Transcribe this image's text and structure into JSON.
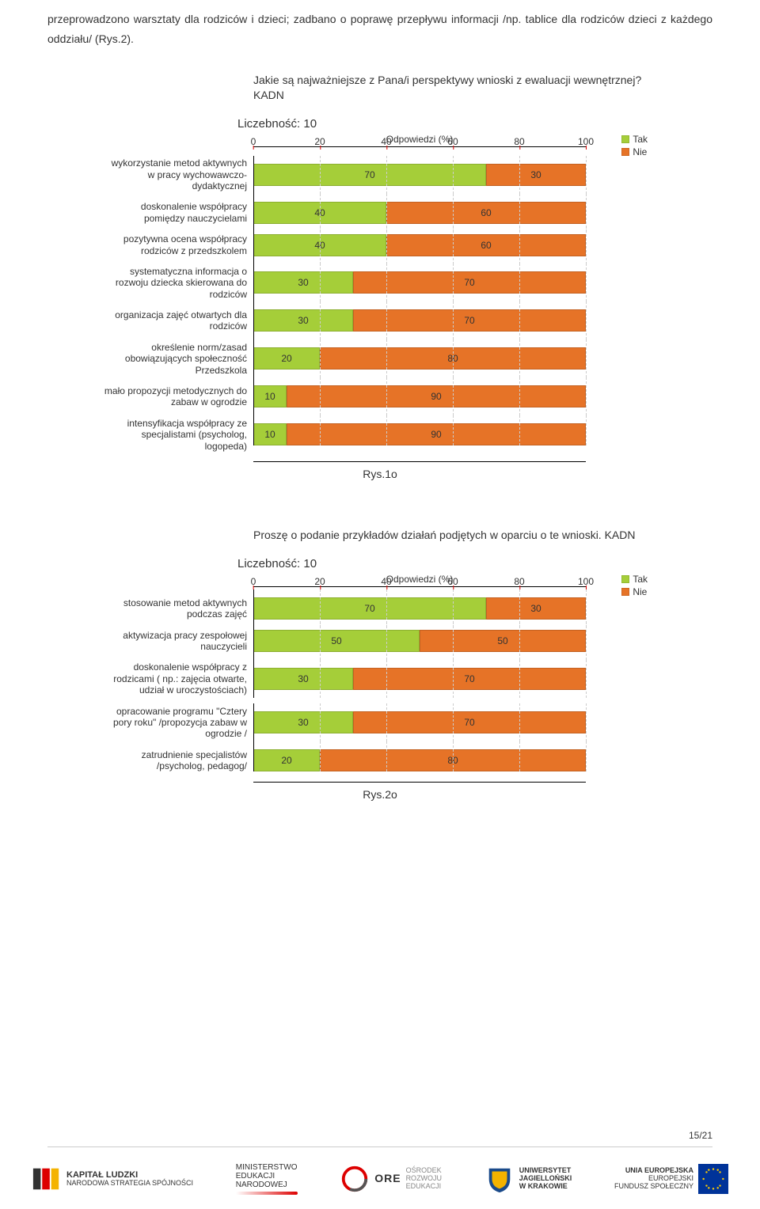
{
  "bodyText": "przeprowadzono warsztaty dla rodziców i dzieci; zadbano o poprawę przepływu informacji /np. tablice dla rodziców dzieci z każdego oddziału/ (Rys.2).",
  "chart1": {
    "title": "Jakie są najważniejsze z Pana/i perspektywy wnioski z ewaluacji wewnętrznej? KADN",
    "count": "Liczebność: 10",
    "axisTitle": "Odpowiedzi (%)",
    "ticks": [
      "0",
      "20",
      "40",
      "60",
      "80",
      "100"
    ],
    "legendYes": "Tak",
    "legendNo": "Nie",
    "rows": [
      {
        "label": "wykorzystanie metod aktywnych w pracy wychowawczo-dydaktycznej",
        "yes": 70,
        "no": 30
      },
      {
        "label": "doskonalenie współpracy pomiędzy nauczycielami",
        "yes": 40,
        "no": 60
      },
      {
        "label": "pozytywna ocena współpracy rodziców z przedszkolem",
        "yes": 40,
        "no": 60
      },
      {
        "label": "systematyczna informacja o rozwoju dziecka skierowana do rodziców",
        "yes": 30,
        "no": 70
      },
      {
        "label": "organizacja zajęć otwartych dla rodziców",
        "yes": 30,
        "no": 70
      },
      {
        "label": "określenie norm/zasad obowiązujących społeczność Przedszkola",
        "yes": 20,
        "no": 80
      },
      {
        "label": "mało propozycji metodycznych do zabaw w ogrodzie",
        "yes": 10,
        "no": 90
      },
      {
        "label": "intensyfikacja współpracy ze specjalistami (psycholog, logopeda)",
        "yes": 10,
        "no": 90
      }
    ],
    "caption": "Rys.1o"
  },
  "chart2": {
    "title": "Proszę o podanie przykładów działań podjętych w oparciu o te wnioski. KADN",
    "count": "Liczebność: 10",
    "axisTitle": "Odpowiedzi (%)",
    "ticks": [
      "0",
      "20",
      "40",
      "60",
      "80",
      "100"
    ],
    "legendYes": "Tak",
    "legendNo": "Nie",
    "rows": [
      {
        "label": "stosowanie metod aktywnych podczas zajęć",
        "yes": 70,
        "no": 30
      },
      {
        "label": "aktywizacja pracy zespołowej nauczycieli",
        "yes": 50,
        "no": 50
      },
      {
        "label": "doskonalenie współpracy z rodzicami ( np.: zajęcia otwarte, udział w uroczystościach)",
        "yes": 30,
        "no": 70
      },
      {
        "label": "opracowanie programu \"Cztery pory roku\" /propozycja zabaw w ogrodzie /",
        "yes": 30,
        "no": 70
      },
      {
        "label": "zatrudnienie specjalistów /psycholog, pedagog/",
        "yes": 20,
        "no": 80
      }
    ],
    "caption": "Rys.2o"
  },
  "footer": {
    "pageNum": "15/21",
    "logos": {
      "kapital": {
        "top": "KAPITAŁ LUDZKI",
        "sub": "NARODOWA STRATEGIA SPÓJNOŚCI"
      },
      "men": {
        "l1": "MINISTERSTWO",
        "l2": "EDUKACJI",
        "l3": "NARODOWEJ"
      },
      "ore": {
        "brand": "ORE",
        "l1": "OŚRODEK",
        "l2": "ROZWOJU",
        "l3": "EDUKACJI"
      },
      "uj": {
        "l1": "UNIWERSYTET",
        "l2": "JAGIELLOŃSKI",
        "l3": "W KRAKOWIE"
      },
      "eu": {
        "l1": "UNIA EUROPEJSKA",
        "l2": "EUROPEJSKI",
        "l3": "FUNDUSZ SPOŁECZNY"
      }
    }
  },
  "colors": {
    "yes": "#a5ce39",
    "no": "#e67327"
  }
}
